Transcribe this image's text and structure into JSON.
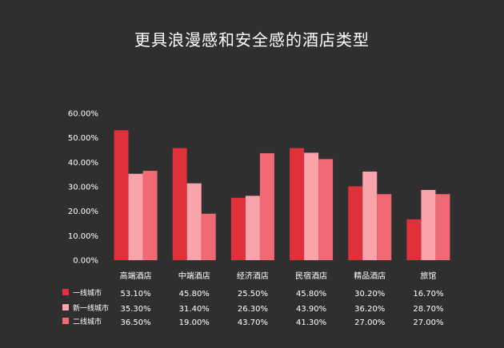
{
  "title": "更具浪漫感和安全感的酒店类型",
  "chart_data": {
    "type": "bar",
    "title": "更具浪漫感和安全感的酒店类型",
    "categories": [
      "高端酒店",
      "中端酒店",
      "经济酒店",
      "民宿酒店",
      "精品酒店",
      "旅馆"
    ],
    "series": [
      {
        "name": "一线城市",
        "color": "#e0313b",
        "values": [
          53.1,
          45.8,
          25.5,
          45.8,
          30.2,
          16.7
        ],
        "labels": [
          "53.10%",
          "45.80%",
          "25.50%",
          "45.80%",
          "30.20%",
          "16.70%"
        ]
      },
      {
        "name": "新一线城市",
        "color": "#f9a3ab",
        "values": [
          35.3,
          31.4,
          26.3,
          43.9,
          36.2,
          28.7
        ],
        "labels": [
          "35.30%",
          "31.40%",
          "26.30%",
          "43.90%",
          "36.20%",
          "28.70%"
        ]
      },
      {
        "name": "二线城市",
        "color": "#ef6a72",
        "values": [
          36.5,
          19.0,
          43.7,
          41.3,
          27.0,
          27.0
        ],
        "labels": [
          "36.50%",
          "19.00%",
          "43.70%",
          "41.30%",
          "27.00%",
          "27.00%"
        ]
      }
    ],
    "ylim": [
      0,
      60
    ],
    "yticks": [
      "0.00%",
      "10.00%",
      "20.00%",
      "30.00%",
      "40.00%",
      "50.00%",
      "60.00%"
    ],
    "grid": false,
    "legend": "bottom-left, as data table rows",
    "data_table": true
  }
}
